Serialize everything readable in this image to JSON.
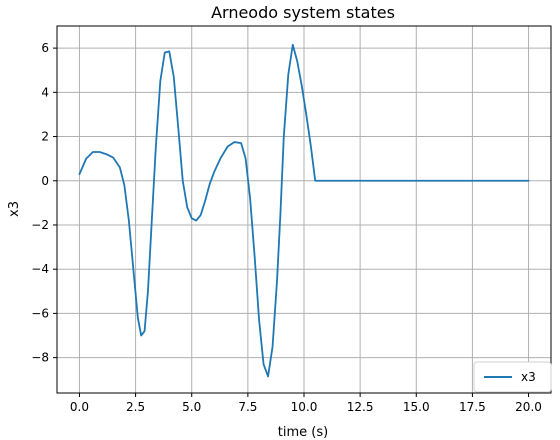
{
  "chart_data": {
    "type": "line",
    "title": "Arneodo system states",
    "xlabel": "time (s)",
    "ylabel": "x3",
    "xlim": [
      -1.0,
      21.0
    ],
    "ylim": [
      -9.6,
      7.0
    ],
    "grid": true,
    "legend": {
      "position": "bottom-right",
      "entries": [
        "x3"
      ]
    },
    "x_ticks": [
      {
        "value": 0.0,
        "label": "0.0"
      },
      {
        "value": 2.5,
        "label": "2.5"
      },
      {
        "value": 5.0,
        "label": "5.0"
      },
      {
        "value": 7.5,
        "label": "7.5"
      },
      {
        "value": 10.0,
        "label": "10.0"
      },
      {
        "value": 12.5,
        "label": "12.5"
      },
      {
        "value": 15.0,
        "label": "15.0"
      },
      {
        "value": 17.5,
        "label": "17.5"
      },
      {
        "value": 20.0,
        "label": "20.0"
      }
    ],
    "y_ticks": [
      {
        "value": -8,
        "label": "−8"
      },
      {
        "value": -6,
        "label": "−6"
      },
      {
        "value": -4,
        "label": "−4"
      },
      {
        "value": -2,
        "label": "−2"
      },
      {
        "value": 0,
        "label": "0"
      },
      {
        "value": 2,
        "label": "2"
      },
      {
        "value": 4,
        "label": "4"
      },
      {
        "value": 6,
        "label": "6"
      }
    ],
    "series": [
      {
        "name": "x3",
        "color": "#1f77b4",
        "x": [
          0,
          0.3,
          0.6,
          0.9,
          1.2,
          1.5,
          1.8,
          2.0,
          2.2,
          2.4,
          2.6,
          2.75,
          2.9,
          3.05,
          3.2,
          3.4,
          3.6,
          3.8,
          4.0,
          4.2,
          4.4,
          4.6,
          4.8,
          5.0,
          5.2,
          5.4,
          5.6,
          5.8,
          6.0,
          6.3,
          6.6,
          6.9,
          7.2,
          7.4,
          7.6,
          7.8,
          8.0,
          8.2,
          8.4,
          8.6,
          8.8,
          8.95,
          9.1,
          9.3,
          9.5,
          9.7,
          9.9,
          10.1,
          10.3,
          10.5,
          10.6,
          10.62,
          10.65,
          10.7,
          11.0,
          13.0,
          15.0,
          17.5,
          20.0
        ],
        "values": [
          0.3,
          1.0,
          1.3,
          1.3,
          1.2,
          1.05,
          0.6,
          -0.2,
          -1.8,
          -4.0,
          -6.2,
          -7.0,
          -6.8,
          -5.0,
          -2.2,
          1.5,
          4.5,
          5.8,
          5.85,
          4.7,
          2.4,
          0.0,
          -1.2,
          -1.7,
          -1.8,
          -1.55,
          -0.9,
          -0.15,
          0.4,
          1.05,
          1.55,
          1.75,
          1.7,
          1.0,
          -0.8,
          -3.4,
          -6.3,
          -8.3,
          -8.85,
          -7.5,
          -4.5,
          -1.5,
          2.0,
          4.8,
          6.15,
          5.4,
          4.3,
          3.0,
          1.6,
          0.0,
          0.0,
          0.0,
          0.0,
          0.0,
          0.0,
          0.0,
          0.0,
          0.0,
          0.0
        ]
      }
    ]
  }
}
